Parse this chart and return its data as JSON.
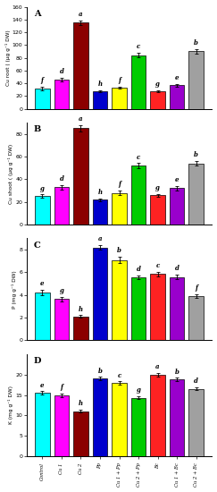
{
  "categories": [
    "Control",
    "Cu 1",
    "Cu 2",
    "Pp",
    "Cu 1 + Pp",
    "Cu 2 + Pp",
    "Bc",
    "Cu 1 + Bc",
    "Cu 2 + Bc"
  ],
  "bar_colors": [
    "#00FFFF",
    "#FF00FF",
    "#8B0000",
    "#0000CD",
    "#FFFF00",
    "#00CC00",
    "#FF2222",
    "#9900CC",
    "#A0A0A0"
  ],
  "panel_A": {
    "values": [
      32,
      46,
      135,
      27,
      33,
      84,
      28,
      37,
      90
    ],
    "labels": [
      "f",
      "d",
      "a",
      "h",
      "f",
      "c",
      "g",
      "e",
      "b"
    ],
    "ylabel": "Cu root ( (μg g⁻¹ DW)",
    "ylim": [
      0,
      160
    ],
    "yticks": [
      0,
      20,
      40,
      60,
      80,
      100,
      120,
      140,
      160
    ],
    "title": "A"
  },
  "panel_B": {
    "values": [
      25,
      33,
      85,
      22,
      28,
      52,
      26,
      32,
      54
    ],
    "labels": [
      "g",
      "d",
      "a",
      "h",
      "f",
      "c",
      "g",
      "e",
      "b"
    ],
    "ylabel": "Cu shoot ( (μg g⁻¹ DW)",
    "ylim": [
      0,
      90
    ],
    "yticks": [
      0,
      20,
      40,
      60,
      80
    ],
    "title": "B"
  },
  "panel_C": {
    "values": [
      4.2,
      3.65,
      2.1,
      8.2,
      7.1,
      5.55,
      5.85,
      5.6,
      3.9
    ],
    "labels": [
      "e",
      "g",
      "h",
      "a",
      "b",
      "d",
      "c",
      "d",
      "f"
    ],
    "ylabel": "P (mg g⁻¹ DW)",
    "ylim": [
      0,
      9
    ],
    "yticks": [
      0,
      2,
      4,
      6,
      8
    ],
    "title": "C"
  },
  "panel_D": {
    "values": [
      15.5,
      14.9,
      11.0,
      19.0,
      17.9,
      14.3,
      20.0,
      18.8,
      16.5
    ],
    "labels": [
      "e",
      "f",
      "h",
      "b",
      "c",
      "g",
      "a",
      "b",
      "d"
    ],
    "ylabel": "K (mg g⁻¹ DW)",
    "ylim": [
      0,
      25
    ],
    "yticks": [
      0,
      5,
      10,
      15,
      20
    ],
    "title": "D"
  },
  "error_bars": {
    "A": [
      2.5,
      2.5,
      4,
      1.5,
      2,
      3.5,
      1.5,
      2,
      3
    ],
    "B": [
      1.5,
      2,
      3,
      1.2,
      1.8,
      2.2,
      1.2,
      1.8,
      2
    ],
    "C": [
      0.25,
      0.2,
      0.12,
      0.18,
      0.28,
      0.18,
      0.18,
      0.18,
      0.15
    ],
    "D": [
      0.4,
      0.4,
      0.35,
      0.4,
      0.4,
      0.35,
      0.4,
      0.4,
      0.4
    ]
  }
}
